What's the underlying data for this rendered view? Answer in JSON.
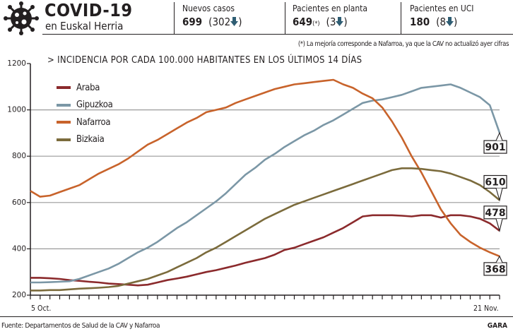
{
  "header": {
    "title": "COVID-19",
    "subtitle": "en Euskal Herria",
    "logo_icon": "virus-icon",
    "stats": [
      {
        "label": "Nuevos casos",
        "value": "699",
        "delta": "302",
        "direction": "down",
        "note_mark": ""
      },
      {
        "label": "Pacientes en planta",
        "value": "649",
        "note_mark": "(*)",
        "delta": "3",
        "direction": "down"
      },
      {
        "label": "Pacientes en UCI",
        "value": "180",
        "delta": "8",
        "direction": "down",
        "note_mark": ""
      }
    ],
    "arrow_color": "#2f5d73"
  },
  "note": "(*) La mejoría corresponde a Nafarroa, ya que la CAV no actualizó ayer cifras",
  "footer": {
    "source": "Fuente: Departamentos de Salud de la CAV y Nafarroa",
    "brand": "GARA"
  },
  "chart_data": {
    "type": "line",
    "title": "> INCIDENCIA POR CADA 100.000 HABITANTES EN LOS ÚLTIMOS 14 DÍAS",
    "xlabel": "",
    "ylabel": "",
    "x_start_label": "5 Oct.",
    "x_end_label": "21 Nov.",
    "x_count": 49,
    "ylim": [
      200,
      1200
    ],
    "yticks": [
      200,
      400,
      600,
      800,
      1000,
      1200
    ],
    "grid": true,
    "legend_position": "top-left",
    "series": [
      {
        "name": "Araba",
        "color": "#8b2a2c",
        "end_label": "478",
        "values": [
          275,
          275,
          273,
          270,
          265,
          262,
          258,
          255,
          250,
          248,
          245,
          242,
          245,
          255,
          265,
          272,
          280,
          290,
          300,
          308,
          318,
          328,
          340,
          350,
          360,
          375,
          395,
          405,
          420,
          435,
          450,
          470,
          490,
          515,
          540,
          545,
          545,
          545,
          543,
          540,
          545,
          545,
          535,
          545,
          545,
          540,
          530,
          510,
          478
        ]
      },
      {
        "name": "Gipuzkoa",
        "color": "#7b97a6",
        "end_label": "901",
        "values": [
          255,
          255,
          256,
          258,
          260,
          270,
          285,
          300,
          315,
          335,
          360,
          385,
          405,
          430,
          460,
          490,
          515,
          545,
          575,
          605,
          640,
          680,
          720,
          750,
          785,
          810,
          840,
          865,
          890,
          910,
          935,
          955,
          980,
          1005,
          1030,
          1040,
          1045,
          1055,
          1065,
          1080,
          1095,
          1100,
          1105,
          1110,
          1095,
          1075,
          1055,
          1020,
          901
        ]
      },
      {
        "name": "Nafarroa",
        "color": "#c8632b",
        "end_label": "368",
        "values": [
          650,
          625,
          630,
          645,
          660,
          675,
          700,
          725,
          745,
          765,
          790,
          820,
          850,
          870,
          895,
          920,
          945,
          965,
          990,
          1000,
          1010,
          1030,
          1045,
          1060,
          1075,
          1090,
          1100,
          1110,
          1115,
          1120,
          1125,
          1130,
          1110,
          1095,
          1070,
          1050,
          1010,
          950,
          880,
          800,
          730,
          650,
          570,
          510,
          460,
          430,
          405,
          385,
          368
        ]
      },
      {
        "name": "Bizkaia",
        "color": "#7b6b3c",
        "end_label": "610",
        "values": [
          220,
          220,
          222,
          222,
          225,
          228,
          230,
          232,
          235,
          240,
          250,
          260,
          270,
          285,
          300,
          320,
          340,
          360,
          385,
          405,
          430,
          455,
          480,
          505,
          530,
          550,
          570,
          590,
          605,
          620,
          635,
          650,
          665,
          680,
          695,
          710,
          725,
          740,
          748,
          748,
          745,
          740,
          735,
          725,
          710,
          695,
          675,
          645,
          610
        ]
      }
    ]
  }
}
